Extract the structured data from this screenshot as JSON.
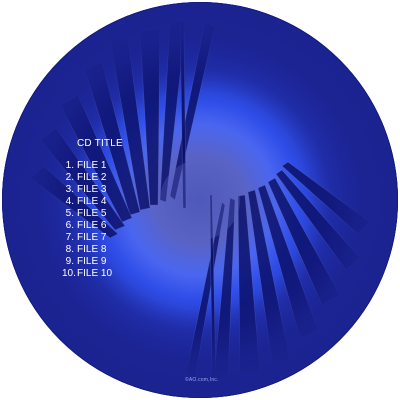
{
  "disc": {
    "base_color": "#1b2391",
    "glow_color": "#3d63ff",
    "center_color": "#5a63c0",
    "blade_color": "#0a0f66",
    "blade_edge_color": "#6a72c8"
  },
  "label": {
    "title": "CD TITLE",
    "tracks": [
      {
        "num": "1.",
        "name": "FILE 1"
      },
      {
        "num": "2.",
        "name": "FILE 2"
      },
      {
        "num": "3.",
        "name": "FILE 3"
      },
      {
        "num": "4.",
        "name": "FILE 4"
      },
      {
        "num": "5.",
        "name": "FILE 5"
      },
      {
        "num": "6.",
        "name": "FILE 6"
      },
      {
        "num": "7.",
        "name": "FILE 7"
      },
      {
        "num": "8.",
        "name": "FILE 8"
      },
      {
        "num": "9.",
        "name": "FILE 9"
      },
      {
        "num": "10.",
        "name": "FILE 10"
      }
    ]
  },
  "copyright": "©AO.com,Inc."
}
